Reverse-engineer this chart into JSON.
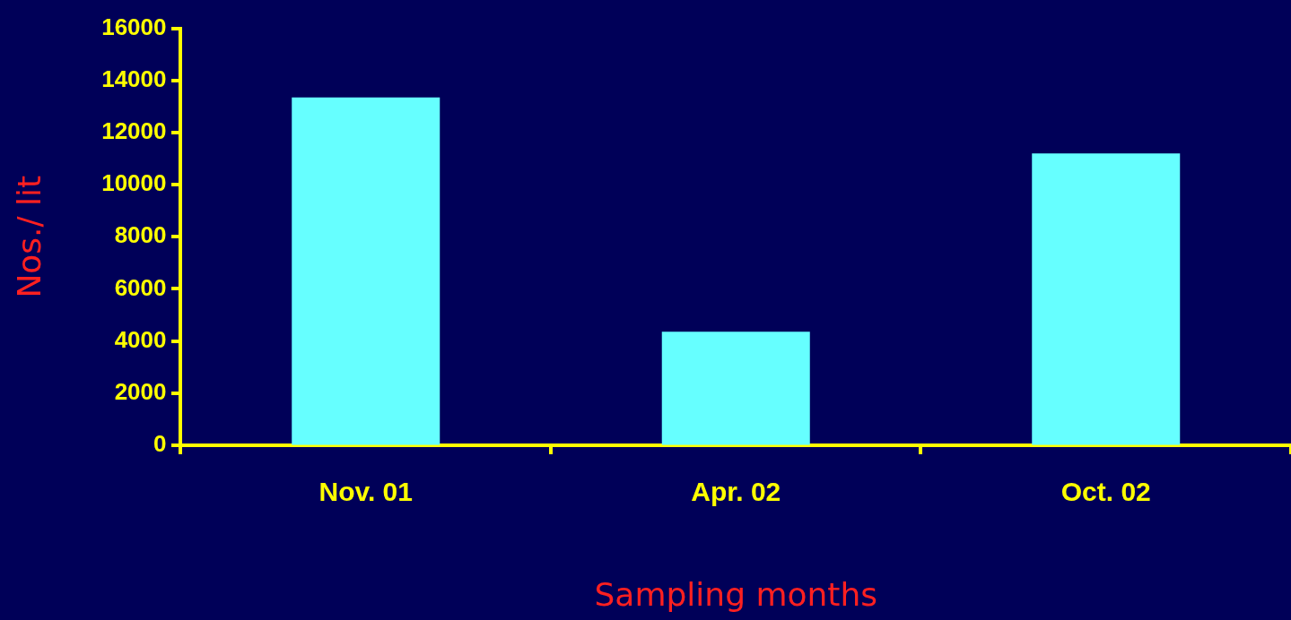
{
  "chart_data": {
    "type": "bar",
    "xlabel": "Sampling months",
    "ylabel": "Nos./ lit",
    "categories": [
      "Nov. 01",
      "Apr. 02",
      "Oct. 02"
    ],
    "values": [
      13350,
      4350,
      11200
    ],
    "color": "#66ffff",
    "ylim": [
      0,
      16000
    ],
    "yticks": [
      0,
      2000,
      4000,
      6000,
      8000,
      10000,
      12000,
      14000,
      16000
    ],
    "grid": false,
    "legend": false
  }
}
